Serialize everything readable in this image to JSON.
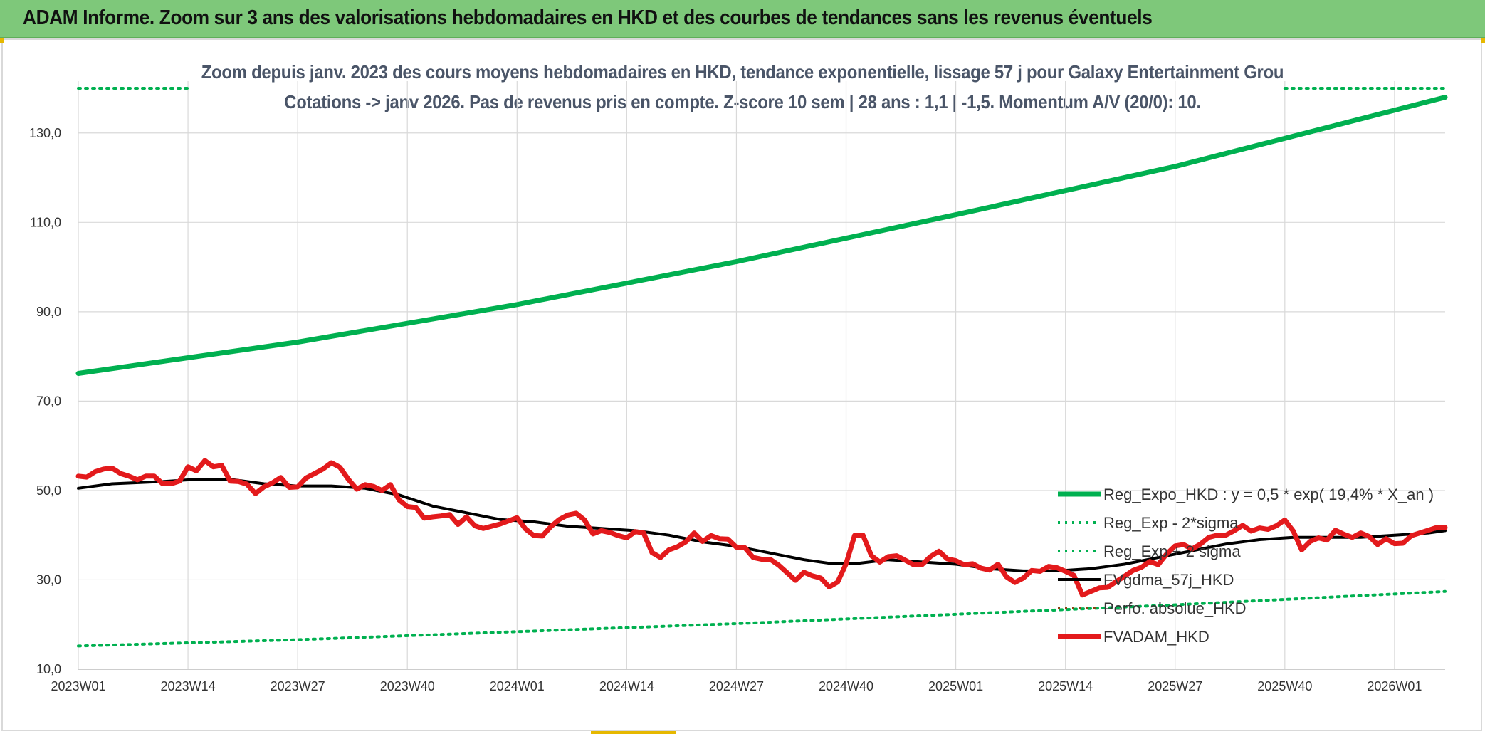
{
  "header": {
    "title": "ADAM Informe. Zoom sur 3 ans des valorisations hebdomadaires en HKD et des courbes de tendances sans les revenus éventuels"
  },
  "chart_data": {
    "type": "line",
    "title": "Zoom depuis janv. 2023 des cours moyens hebdomadaires en HKD, tendance exponentielle, lissage 57 j pour Galaxy Entertainment Grou",
    "subtitle": "Cotations -> janv 2026. Pas de revenus pris en compte. Z-score 10 sem | 28 ans : 1,1 | -1,5. Momentum A/V (20/0): 10.",
    "xlabel": "",
    "ylabel": "",
    "ylim": [
      10,
      140
    ],
    "yticks": [
      "10,0",
      "30,0",
      "50,0",
      "70,0",
      "90,0",
      "110,0",
      "130,0"
    ],
    "ytick_values": [
      10,
      30,
      50,
      70,
      90,
      110,
      130
    ],
    "xlim": [
      0,
      162
    ],
    "xticks": [
      "2023W01",
      "2023W14",
      "2023W27",
      "2023W40",
      "2024W01",
      "2024W14",
      "2024W27",
      "2024W40",
      "2025W01",
      "2025W14",
      "2025W27",
      "2025W40",
      "2026W01"
    ],
    "xtick_positions": [
      0,
      13,
      26,
      39,
      52,
      65,
      78,
      91,
      104,
      117,
      130,
      143,
      156
    ],
    "grid": true,
    "legend_position": "bottom-right",
    "series": [
      {
        "name": "Reg_Expo_HKD : y = 0,5 * exp( 19,4% *  X_an )",
        "style": "solid-thick",
        "color": "#00b050",
        "x": [
          0,
          26,
          52,
          78,
          104,
          130,
          162
        ],
        "values": [
          76.2,
          83.2,
          91.6,
          101.2,
          111.7,
          122.5,
          138.0
        ]
      },
      {
        "name": "Reg_Exp - 2*sigma",
        "style": "dotted",
        "color": "#00b050",
        "x": [
          0,
          26,
          52,
          78,
          104,
          130,
          162
        ],
        "values": [
          15.2,
          16.6,
          18.4,
          20.2,
          22.3,
          24.4,
          27.4
        ]
      },
      {
        "name": "Reg_Exp + 2 sigma",
        "style": "dotted",
        "color": "#00b050",
        "x": [
          0,
          13.5,
          143,
          162
        ],
        "values": [
          140,
          140,
          140,
          140
        ]
      },
      {
        "name": "FVgdma_57j_HKD",
        "style": "solid",
        "color": "#000000",
        "x": [
          0,
          4,
          10,
          14,
          18,
          22,
          26,
          30,
          34,
          38,
          42,
          46,
          50,
          54,
          58,
          62,
          66,
          70,
          74,
          78,
          82,
          86,
          89,
          92,
          96,
          100,
          104,
          108,
          112,
          116,
          120,
          124,
          128,
          132,
          136,
          140,
          144,
          148,
          152,
          156,
          160,
          162
        ],
        "values": [
          50.5,
          51.5,
          52.0,
          52.5,
          52.5,
          51.5,
          51.0,
          51.0,
          50.5,
          49.0,
          46.5,
          45.0,
          43.5,
          43.0,
          42.0,
          41.5,
          41.0,
          40.0,
          38.5,
          37.5,
          36.0,
          34.5,
          33.7,
          33.6,
          34.5,
          34.0,
          33.5,
          32.5,
          32.0,
          32.0,
          32.5,
          33.5,
          35.0,
          36.5,
          38.0,
          39.0,
          39.5,
          39.5,
          39.5,
          40.0,
          40.5,
          41.0
        ]
      },
      {
        "name": "Perfo. absolue_HKD",
        "style": "dotted",
        "color": "#8b4513",
        "x": [],
        "values": []
      },
      {
        "name": "FVADAM_HKD",
        "style": "solid-thick",
        "color": "#e31a1c",
        "x": [
          0,
          1,
          2,
          3,
          4,
          5,
          6,
          7,
          8,
          9,
          10,
          11,
          12,
          13,
          14,
          15,
          16,
          17,
          18,
          19,
          20,
          21,
          22,
          23,
          24,
          25,
          26,
          27,
          28,
          29,
          30,
          31,
          32,
          33,
          34,
          35,
          36,
          37,
          38,
          39,
          40,
          41,
          42,
          43,
          44,
          45,
          46,
          47,
          48,
          49,
          50,
          51,
          52,
          53,
          54,
          55,
          56,
          57,
          58,
          59,
          60,
          61,
          62,
          63,
          64,
          65,
          66,
          67,
          68,
          69,
          70,
          71,
          72,
          73,
          74,
          75,
          76,
          77,
          78,
          79,
          80,
          81,
          82,
          83,
          84,
          85,
          86,
          87,
          88,
          89,
          90,
          91,
          92,
          93,
          94,
          95,
          96,
          97,
          98,
          99,
          100,
          101,
          102,
          103,
          104,
          105,
          106,
          107,
          108,
          109,
          110,
          111,
          112,
          113,
          114,
          115,
          116,
          117,
          118,
          119,
          120,
          121,
          122,
          123,
          124,
          125,
          126,
          127,
          128,
          129,
          130,
          131,
          132,
          133,
          134,
          135,
          136,
          137,
          138,
          139,
          140,
          141,
          142,
          143,
          144,
          145,
          146,
          147,
          148,
          149,
          150,
          151,
          152,
          153,
          154,
          155,
          156,
          157,
          158,
          159,
          160,
          161,
          162
        ],
        "values": [
          53.2,
          53.0,
          54.2,
          54.8,
          55.0,
          53.8,
          53.2,
          52.4,
          53.2,
          53.2,
          51.5,
          51.5,
          52.1,
          55.3,
          54.4,
          56.7,
          55.3,
          55.6,
          52.1,
          52.0,
          51.4,
          49.3,
          50.8,
          51.7,
          52.9,
          50.7,
          50.8,
          52.8,
          53.8,
          54.8,
          56.2,
          55.2,
          52.5,
          50.3,
          51.3,
          50.9,
          50.0,
          51.3,
          47.9,
          46.4,
          46.2,
          43.8,
          44.1,
          44.3,
          44.6,
          42.4,
          44.1,
          42.1,
          41.5,
          42.0,
          42.5,
          43.2,
          43.9,
          41.4,
          39.9,
          39.8,
          41.9,
          43.5,
          44.5,
          44.9,
          43.4,
          40.3,
          41.0,
          40.6,
          39.9,
          39.4,
          40.8,
          40.5,
          36.1,
          35.0,
          36.7,
          37.4,
          38.5,
          40.5,
          38.6,
          39.9,
          39.2,
          39.1,
          37.3,
          37.2,
          35.0,
          34.6,
          34.6,
          33.3,
          31.6,
          29.9,
          31.7,
          30.9,
          30.4,
          28.4,
          29.5,
          33.6,
          39.9,
          40.0,
          35.4,
          34.0,
          35.2,
          35.4,
          34.4,
          33.4,
          33.4,
          35.2,
          36.4,
          34.7,
          34.3,
          33.4,
          33.6,
          32.6,
          32.2,
          33.5,
          30.7,
          29.4,
          30.4,
          32.1,
          31.9,
          33.0,
          32.7,
          31.9,
          31.0,
          26.6,
          27.4,
          28.2,
          28.3,
          29.6,
          30.8,
          32.1,
          32.8,
          34.1,
          33.4,
          35.8,
          37.6,
          37.9,
          36.9,
          38.0,
          39.5,
          40.0,
          40.0,
          41.0,
          42.2,
          40.9,
          41.6,
          41.3,
          42.1,
          43.4,
          40.9,
          36.7,
          38.6,
          39.4,
          38.9,
          41.1,
          40.2,
          39.5,
          40.5,
          39.7,
          37.9,
          39.2,
          38.1,
          38.2,
          39.9,
          40.5,
          41.1,
          41.7,
          41.7
        ]
      }
    ]
  }
}
